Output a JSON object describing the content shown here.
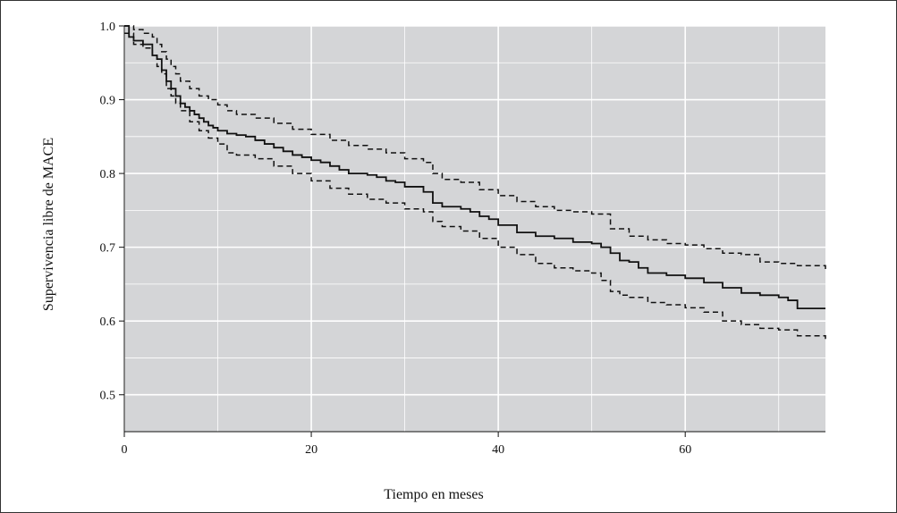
{
  "chart_data": {
    "type": "line",
    "title": "",
    "xlabel": "Tiempo en meses",
    "ylabel": "Supervivencia libre de MACE",
    "xlim": [
      0,
      75
    ],
    "ylim": [
      0.45,
      1.0
    ],
    "x_ticks": [
      0,
      20,
      40,
      60
    ],
    "x_tick_labels": [
      "0",
      "20",
      "40",
      "60"
    ],
    "y_ticks": [
      0.5,
      0.6,
      0.7,
      0.8,
      0.9,
      1.0
    ],
    "y_tick_labels": [
      "0.5",
      "0.6",
      "0.7",
      "0.8",
      "0.9",
      "1.0"
    ],
    "grid": true,
    "background_color": "#d4d5d7",
    "grid_color": "#ffffff",
    "series": [
      {
        "style": "solid",
        "color": "#111111",
        "x": [
          0,
          0.5,
          1,
          2,
          3,
          3.5,
          4,
          4.5,
          5,
          5.5,
          6,
          6.5,
          7,
          7.5,
          8,
          8.5,
          9,
          9.5,
          10,
          11,
          12,
          13,
          14,
          15,
          16,
          17,
          18,
          19,
          20,
          21,
          22,
          23,
          24,
          26,
          27,
          28,
          29,
          30,
          32,
          33,
          34,
          36,
          37,
          38,
          39,
          40,
          42,
          44,
          46,
          48,
          50,
          51,
          52,
          53,
          54,
          55,
          56,
          58,
          60,
          62,
          64,
          66,
          68,
          70,
          71,
          72,
          75
        ],
        "y": [
          1.0,
          0.985,
          0.98,
          0.975,
          0.96,
          0.955,
          0.94,
          0.925,
          0.915,
          0.905,
          0.895,
          0.89,
          0.885,
          0.88,
          0.875,
          0.87,
          0.865,
          0.862,
          0.858,
          0.854,
          0.852,
          0.85,
          0.845,
          0.84,
          0.835,
          0.83,
          0.825,
          0.822,
          0.818,
          0.815,
          0.81,
          0.805,
          0.8,
          0.798,
          0.795,
          0.79,
          0.788,
          0.782,
          0.775,
          0.76,
          0.755,
          0.752,
          0.748,
          0.742,
          0.738,
          0.73,
          0.72,
          0.715,
          0.712,
          0.707,
          0.705,
          0.7,
          0.692,
          0.682,
          0.68,
          0.672,
          0.665,
          0.662,
          0.658,
          0.652,
          0.645,
          0.638,
          0.635,
          0.632,
          0.628,
          0.617,
          0.617
        ]
      },
      {
        "style": "dashed",
        "color": "#111111",
        "x": [
          0,
          1,
          2,
          3,
          3.5,
          4,
          4.5,
          5,
          5.5,
          6,
          7,
          8,
          9,
          10,
          11,
          12,
          14,
          16,
          18,
          20,
          22,
          24,
          26,
          28,
          30,
          32,
          33,
          34,
          36,
          38,
          40,
          42,
          44,
          46,
          48,
          50,
          52,
          54,
          56,
          58,
          60,
          62,
          64,
          66,
          68,
          70,
          72,
          75
        ],
        "y": [
          1.0,
          0.995,
          0.99,
          0.985,
          0.975,
          0.965,
          0.955,
          0.945,
          0.935,
          0.925,
          0.915,
          0.905,
          0.9,
          0.893,
          0.885,
          0.88,
          0.875,
          0.868,
          0.86,
          0.853,
          0.845,
          0.838,
          0.833,
          0.828,
          0.82,
          0.815,
          0.8,
          0.792,
          0.788,
          0.778,
          0.77,
          0.762,
          0.755,
          0.75,
          0.748,
          0.745,
          0.725,
          0.715,
          0.71,
          0.705,
          0.703,
          0.698,
          0.692,
          0.69,
          0.68,
          0.678,
          0.675,
          0.667
        ]
      },
      {
        "style": "dashed",
        "color": "#111111",
        "x": [
          0,
          1,
          2,
          3,
          3.5,
          4,
          4.5,
          5,
          5.5,
          6,
          7,
          8,
          9,
          10,
          11,
          12,
          14,
          16,
          18,
          20,
          22,
          24,
          26,
          28,
          30,
          32,
          33,
          34,
          36,
          38,
          40,
          42,
          44,
          46,
          48,
          50,
          51,
          52,
          53,
          54,
          56,
          58,
          60,
          62,
          64,
          66,
          68,
          70,
          72,
          75
        ],
        "y": [
          0.99,
          0.975,
          0.97,
          0.96,
          0.945,
          0.935,
          0.915,
          0.905,
          0.895,
          0.885,
          0.87,
          0.858,
          0.848,
          0.84,
          0.828,
          0.825,
          0.82,
          0.81,
          0.8,
          0.79,
          0.78,
          0.772,
          0.765,
          0.76,
          0.752,
          0.748,
          0.735,
          0.728,
          0.722,
          0.712,
          0.7,
          0.69,
          0.678,
          0.672,
          0.668,
          0.665,
          0.655,
          0.64,
          0.635,
          0.632,
          0.625,
          0.622,
          0.618,
          0.612,
          0.6,
          0.595,
          0.59,
          0.588,
          0.58,
          0.573
        ]
      }
    ]
  }
}
